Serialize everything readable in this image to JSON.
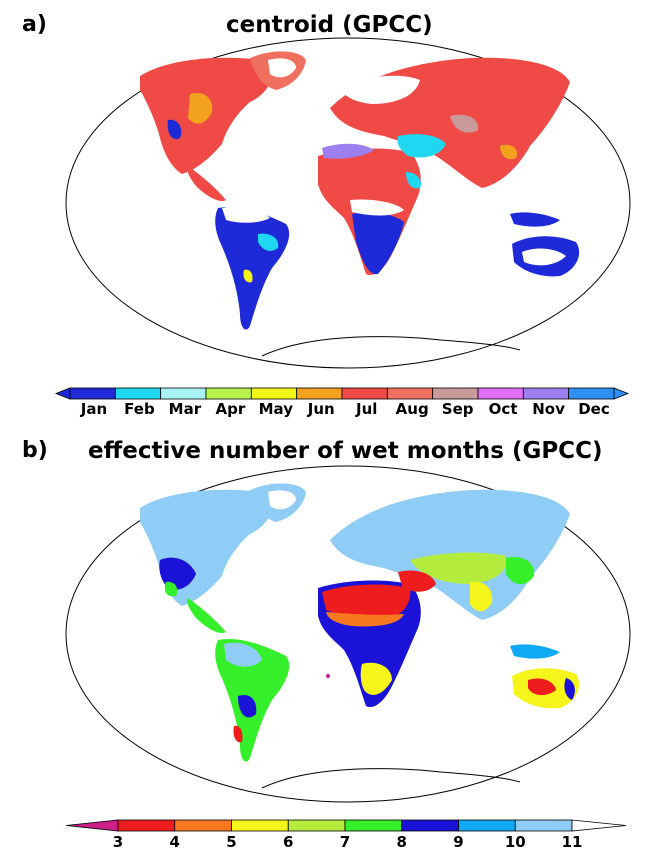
{
  "panels": {
    "a": {
      "label": "a)",
      "title": "centroid (GPCC)",
      "colorbar": {
        "ticks": [
          "Jan",
          "Feb",
          "Mar",
          "Apr",
          "May",
          "Jun",
          "Jul",
          "Aug",
          "Sep",
          "Oct",
          "Nov",
          "Dec"
        ],
        "colors": [
          "#1e2ad8",
          "#1fd7f0",
          "#a9f2f5",
          "#b8f24a",
          "#f3f518",
          "#f2a21c",
          "#ef4a45",
          "#f07060",
          "#c99a9a",
          "#e06ef2",
          "#9d7ff0",
          "#2f8ff2"
        ]
      }
    },
    "b": {
      "label": "b)",
      "title": "effective number of wet months (GPCC)",
      "colorbar": {
        "ticks": [
          "3",
          "4",
          "5",
          "6",
          "7",
          "8",
          "9",
          "10",
          "11"
        ],
        "left_color": "#cc1f8a",
        "right_color": "#ffffff",
        "colors": [
          "#ee1d1d",
          "#f87820",
          "#f5f51c",
          "#b4ec3e",
          "#34ef2a",
          "#1a12d6",
          "#10a9f4",
          "#8fcdf6"
        ]
      }
    }
  },
  "map_colors": {
    "ocean": "#ffffff",
    "coast": "#000000"
  }
}
